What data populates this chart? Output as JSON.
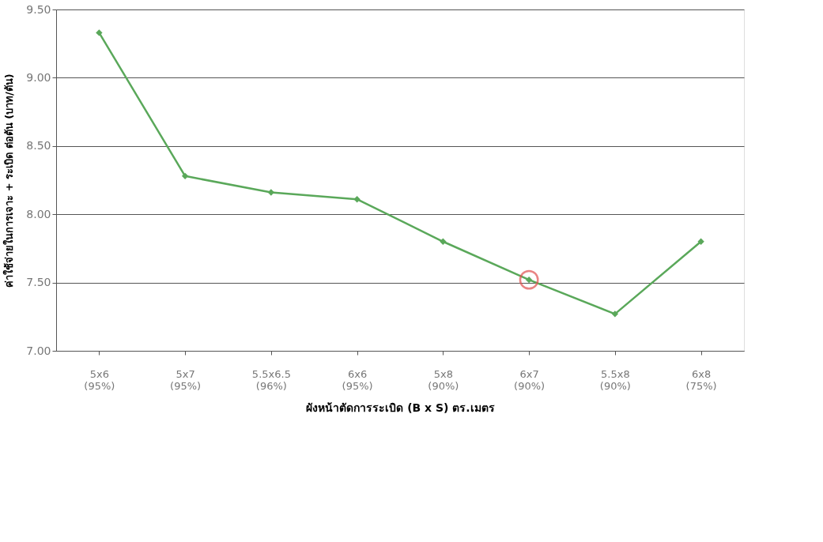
{
  "chart_data": {
    "type": "line",
    "xlabel": "ผังหน้าตัดการระเบิด (B x S)  ตร.เมตร",
    "ylabel": "ค่าใช้จ่ายในการเจาะ + ระเบิด ต่อตัน   (บาท/ตัน)",
    "categories": [
      "5x6\n(95%)",
      "5x7\n(95%)",
      "5.5x6.5\n(96%)",
      "6x6\n(95%)",
      "5x8\n(90%)",
      "6x7\n(90%)",
      "5.5x8\n(90%)",
      "6x8\n(75%)"
    ],
    "series": [
      {
        "color": "#5aa85a",
        "values": [
          9.33,
          8.28,
          8.16,
          8.11,
          7.8,
          7.52,
          7.27,
          7.8
        ],
        "marker": "diamond"
      },
      {
        "type": "scatter",
        "color": "#e05050",
        "values": [
          null,
          null,
          null,
          null,
          null,
          7.52,
          null,
          null
        ],
        "marker": "circle"
      }
    ],
    "ylim": [
      7.0,
      9.5
    ],
    "yticks": [
      {
        "value": 7.0,
        "label": "7.00"
      },
      {
        "value": 7.5,
        "label": "7.50"
      },
      {
        "value": 8.0,
        "label": "8.00"
      },
      {
        "value": 8.5,
        "label": "8.50"
      },
      {
        "value": 9.0,
        "label": "9.00"
      },
      {
        "value": 9.5,
        "label": "9.50"
      }
    ],
    "grid": "y"
  }
}
